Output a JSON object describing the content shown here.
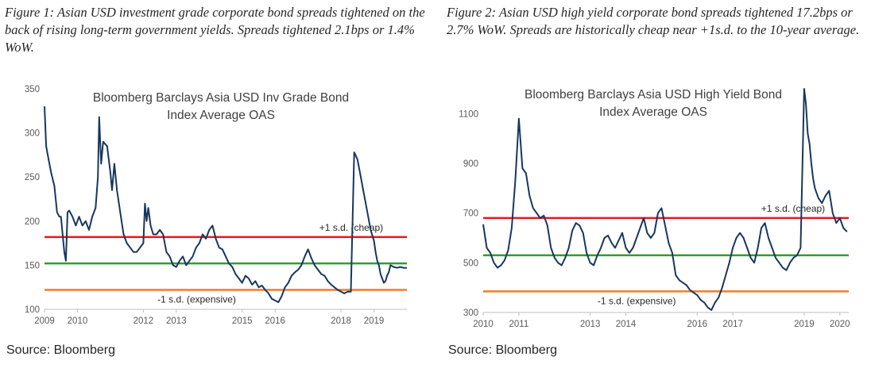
{
  "figure1": {
    "caption": "Figure 1: Asian USD investment grade corporate bond spreads tightened on the back of rising long-term government yields. Spreads tightened 2.1bps or 1.4% WoW.",
    "source": "Source: Bloomberg"
  },
  "figure2": {
    "caption": "Figure 2: Asian USD high yield corporate bond spreads tightened 17.2bps or 2.7% WoW. Spreads are historically cheap near +1s.d. to the 10-year average.",
    "source": "Source: Bloomberg"
  },
  "chart_data": [
    {
      "type": "line",
      "title": "Bloomberg Barclays Asia USD Inv Grade Bond Index Average OAS",
      "title_lines": [
        "Bloomberg  Barclays Asia USD Inv Grade Bond",
        "Index Average OAS"
      ],
      "xlabel": "",
      "ylabel": "",
      "xlim": [
        2009.0,
        2020.0
      ],
      "ylim": [
        100,
        350
      ],
      "yticks": [
        100,
        150,
        200,
        250,
        300,
        350
      ],
      "xticks": [
        2009,
        2010,
        2012,
        2013,
        2015,
        2016,
        2018,
        2019
      ],
      "xtick_labels": [
        "2009",
        "2010",
        "2012",
        "2013",
        "2015",
        "2016",
        "2018",
        "2019"
      ],
      "grid": false,
      "series": [
        {
          "color": "#17375e",
          "x": [
            2009.0,
            2009.05,
            2009.1,
            2009.2,
            2009.3,
            2009.38,
            2009.45,
            2009.5,
            2009.55,
            2009.6,
            2009.65,
            2009.7,
            2009.75,
            2009.85,
            2009.95,
            2010.05,
            2010.15,
            2010.25,
            2010.35,
            2010.45,
            2010.55,
            2010.62,
            2010.66,
            2010.72,
            2010.78,
            2010.9,
            2011.0,
            2011.05,
            2011.12,
            2011.2,
            2011.3,
            2011.4,
            2011.5,
            2011.6,
            2011.7,
            2011.8,
            2011.9,
            2012.0,
            2012.05,
            2012.1,
            2012.15,
            2012.22,
            2012.3,
            2012.4,
            2012.5,
            2012.6,
            2012.7,
            2012.8,
            2012.9,
            2013.0,
            2013.1,
            2013.2,
            2013.3,
            2013.4,
            2013.5,
            2013.6,
            2013.7,
            2013.8,
            2013.9,
            2014.0,
            2014.1,
            2014.2,
            2014.3,
            2014.4,
            2014.5,
            2014.6,
            2014.7,
            2014.8,
            2014.9,
            2015.0,
            2015.1,
            2015.2,
            2015.3,
            2015.4,
            2015.5,
            2015.6,
            2015.7,
            2015.8,
            2015.9,
            2016.0,
            2016.1,
            2016.2,
            2016.3,
            2016.4,
            2016.5,
            2016.6,
            2016.7,
            2016.8,
            2016.9,
            2017.0,
            2017.1,
            2017.2,
            2017.3,
            2017.4,
            2017.5,
            2017.6,
            2017.7,
            2017.8,
            2017.9,
            2018.0,
            2018.1,
            2018.2,
            2018.3,
            2018.4,
            2018.5,
            2018.6,
            2018.7,
            2018.8,
            2018.9,
            2019.0,
            2019.05,
            2019.1,
            2019.15,
            2019.2,
            2019.25,
            2019.3,
            2019.35,
            2019.4,
            2019.45,
            2019.5,
            2019.6,
            2019.7,
            2019.8,
            2019.9,
            2020.0
          ],
          "values": [
            330,
            285,
            275,
            255,
            240,
            210,
            205,
            205,
            185,
            165,
            155,
            210,
            212,
            205,
            195,
            205,
            195,
            200,
            190,
            205,
            215,
            250,
            318,
            265,
            290,
            285,
            255,
            235,
            265,
            235,
            210,
            185,
            175,
            170,
            165,
            165,
            170,
            175,
            220,
            200,
            215,
            195,
            185,
            185,
            190,
            185,
            165,
            160,
            150,
            148,
            155,
            160,
            150,
            155,
            160,
            170,
            175,
            185,
            180,
            190,
            195,
            180,
            170,
            168,
            160,
            152,
            148,
            140,
            135,
            130,
            138,
            135,
            128,
            132,
            125,
            127,
            122,
            118,
            112,
            110,
            108,
            115,
            125,
            130,
            138,
            142,
            145,
            150,
            160,
            168,
            158,
            150,
            145,
            140,
            138,
            132,
            128,
            125,
            122,
            120,
            118,
            120,
            120,
            278,
            270,
            250,
            230,
            210,
            190,
            178,
            165,
            155,
            150,
            140,
            135,
            130,
            132,
            138,
            142,
            150,
            148,
            147,
            148,
            147,
            147
          ]
        }
      ],
      "hlines": [
        {
          "value": 182,
          "color": "#e41a1c",
          "label": "+1 s.d. (cheap)",
          "label_pos": "above-right"
        },
        {
          "value": 152,
          "color": "#2ca02c",
          "label": "",
          "label_pos": ""
        },
        {
          "value": 122,
          "color": "#f07d28",
          "label": "-1 s.d. (expensive)",
          "label_pos": "below-center"
        }
      ]
    },
    {
      "type": "line",
      "title": "Bloomberg Barclays Asia USD High Yield Bond Index Average OAS",
      "title_lines": [
        "Bloomberg  Barclays Asia USD High Yield Bond",
        "Index Average OAS"
      ],
      "xlabel": "",
      "ylabel": "",
      "xlim": [
        2010.0,
        2020.25
      ],
      "ylim": [
        300,
        1200
      ],
      "yticks": [
        300,
        500,
        700,
        900,
        1100
      ],
      "xticks": [
        2010,
        2011,
        2013,
        2014,
        2016,
        2017,
        2019,
        2020
      ],
      "xtick_labels": [
        "2010",
        "2011",
        "2013",
        "2014",
        "2016",
        "2017",
        "2019",
        "2020"
      ],
      "grid": false,
      "series": [
        {
          "color": "#17375e",
          "x": [
            2010.0,
            2010.1,
            2010.2,
            2010.3,
            2010.4,
            2010.5,
            2010.6,
            2010.7,
            2010.8,
            2010.9,
            2011.0,
            2011.1,
            2011.2,
            2011.3,
            2011.4,
            2011.5,
            2011.6,
            2011.7,
            2011.8,
            2011.9,
            2012.0,
            2012.1,
            2012.2,
            2012.3,
            2012.4,
            2012.5,
            2012.6,
            2012.7,
            2012.8,
            2012.9,
            2013.0,
            2013.1,
            2013.2,
            2013.3,
            2013.4,
            2013.5,
            2013.6,
            2013.7,
            2013.8,
            2013.9,
            2014.0,
            2014.1,
            2014.2,
            2014.3,
            2014.4,
            2014.5,
            2014.6,
            2014.7,
            2014.8,
            2014.9,
            2015.0,
            2015.1,
            2015.2,
            2015.3,
            2015.4,
            2015.5,
            2015.6,
            2015.7,
            2015.8,
            2015.9,
            2016.0,
            2016.1,
            2016.2,
            2016.3,
            2016.4,
            2016.5,
            2016.6,
            2016.7,
            2016.8,
            2016.9,
            2017.0,
            2017.1,
            2017.2,
            2017.3,
            2017.4,
            2017.5,
            2017.6,
            2017.7,
            2017.8,
            2017.9,
            2018.0,
            2018.1,
            2018.2,
            2018.3,
            2018.4,
            2018.5,
            2018.6,
            2018.7,
            2018.8,
            2018.9,
            2019.0,
            2019.05,
            2019.1,
            2019.15,
            2019.2,
            2019.25,
            2019.3,
            2019.4,
            2019.5,
            2019.6,
            2019.7,
            2019.8,
            2019.9,
            2020.0,
            2020.1,
            2020.2
          ],
          "values": [
            655,
            560,
            540,
            500,
            480,
            490,
            510,
            550,
            640,
            830,
            1080,
            880,
            860,
            770,
            720,
            700,
            680,
            690,
            650,
            560,
            520,
            500,
            490,
            520,
            560,
            630,
            660,
            650,
            620,
            540,
            500,
            490,
            530,
            560,
            600,
            610,
            580,
            560,
            590,
            620,
            560,
            540,
            560,
            600,
            640,
            680,
            620,
            600,
            620,
            700,
            720,
            650,
            580,
            540,
            450,
            430,
            420,
            410,
            390,
            380,
            370,
            350,
            340,
            320,
            310,
            340,
            360,
            400,
            450,
            500,
            560,
            600,
            620,
            600,
            560,
            520,
            500,
            560,
            640,
            660,
            600,
            560,
            520,
            500,
            480,
            470,
            500,
            520,
            530,
            560,
            1200,
            1140,
            1020,
            980,
            900,
            840,
            800,
            760,
            740,
            770,
            790,
            700,
            660,
            680,
            640,
            625
          ]
        }
      ],
      "hlines": [
        {
          "value": 680,
          "color": "#e41a1c",
          "label": "+1 s.d. (cheap)",
          "label_pos": "above-right"
        },
        {
          "value": 530,
          "color": "#2ca02c",
          "label": "",
          "label_pos": ""
        },
        {
          "value": 385,
          "color": "#f07d28",
          "label": "-1 s.d. (expensive)",
          "label_pos": "below-center"
        }
      ]
    }
  ]
}
